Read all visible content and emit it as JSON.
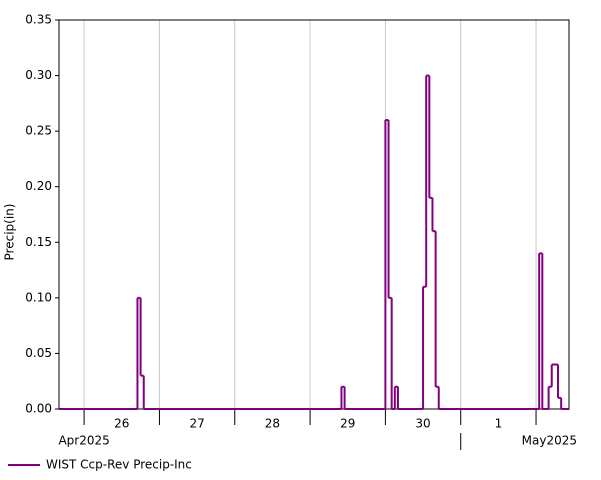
{
  "chart_data": {
    "type": "step",
    "ylabel": "Precip(in)",
    "x": [
      "2025-04-25T16:00",
      "2025-04-26T17:00",
      "2025-04-26T18:00",
      "2025-04-26T19:00",
      "2025-04-29T10:00",
      "2025-04-29T11:00",
      "2025-04-30T00:00",
      "2025-04-30T01:00",
      "2025-04-30T02:00",
      "2025-04-30T03:00",
      "2025-04-30T04:00",
      "2025-04-30T12:00",
      "2025-04-30T13:00",
      "2025-04-30T14:00",
      "2025-04-30T15:00",
      "2025-04-30T16:00",
      "2025-04-30T17:00",
      "2025-05-02T01:00",
      "2025-05-02T02:00",
      "2025-05-02T04:00",
      "2025-05-02T05:00",
      "2025-05-02T07:00",
      "2025-05-02T08:00"
    ],
    "series": [
      {
        "name": "WIST Ccp-Rev Precip-Inc",
        "color": "#800080",
        "values": [
          0,
          0.1,
          0.03,
          0,
          0.02,
          0,
          0.26,
          0.1,
          0,
          0.02,
          0,
          0.11,
          0.3,
          0.19,
          0.16,
          0.02,
          0,
          0.14,
          0,
          0.02,
          0.04,
          0.01,
          0
        ]
      }
    ],
    "xlim": [
      "2025-04-25T16:00",
      "2025-05-02T10:30"
    ],
    "xticks": [
      "2025-04-26T00:00",
      "2025-04-27T00:00",
      "2025-04-28T00:00",
      "2025-04-29T00:00",
      "2025-04-30T00:00",
      "2025-05-01T00:00",
      "2025-05-02T00:00"
    ],
    "x_day_labels": [
      {
        "value": "2025-04-26T12:00",
        "label": "26"
      },
      {
        "value": "2025-04-27T12:00",
        "label": "27"
      },
      {
        "value": "2025-04-28T12:00",
        "label": "28"
      },
      {
        "value": "2025-04-29T12:00",
        "label": "29"
      },
      {
        "value": "2025-04-30T12:00",
        "label": "30"
      },
      {
        "value": "2025-05-01T12:00",
        "label": "1"
      }
    ],
    "x_month_labels": [
      {
        "value": "2025-04-26T00:00",
        "label": "Apr2025"
      },
      {
        "value": "2025-05-01T00:00",
        "label": "May2025"
      }
    ],
    "ylim": [
      0,
      0.35
    ],
    "yticks": [
      {
        "value": 0,
        "label": "0.00"
      },
      {
        "value": 0.05,
        "label": "0.05"
      },
      {
        "value": 0.1,
        "label": "0.10"
      },
      {
        "value": 0.15,
        "label": "0.15"
      },
      {
        "value": 0.2,
        "label": "0.20"
      },
      {
        "value": 0.25,
        "label": "0.25"
      },
      {
        "value": 0.3,
        "label": "0.30"
      },
      {
        "value": 0.35,
        "label": "0.35"
      }
    ],
    "grid": true,
    "legend": "bottom-left"
  }
}
